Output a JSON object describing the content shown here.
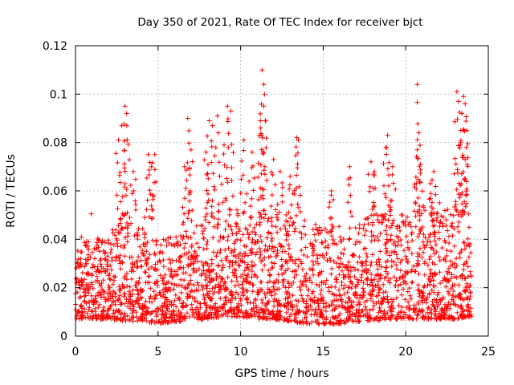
{
  "chart_data": {
    "type": "scatter",
    "title": "Day 350 of 2021, Rate Of TEC Index for receiver bjct",
    "xlabel": "GPS time / hours",
    "ylabel": "ROTI / TECUs",
    "xlim": [
      0,
      25
    ],
    "ylim": [
      0,
      0.12
    ],
    "xticks": [
      "0",
      "5",
      "10",
      "15",
      "20",
      "25"
    ],
    "yticks": [
      "0",
      "0.02",
      "0.04",
      "0.06",
      "0.08",
      "0.1",
      "0.12"
    ],
    "grid": true,
    "marker": "+",
    "color": "#ff0000",
    "x_range_of_data": [
      0,
      24
    ],
    "series": [
      {
        "dense_band": {
          "hours": [
            0,
            1,
            2,
            3,
            4,
            5,
            6,
            7,
            8,
            9,
            10,
            11,
            12,
            13,
            14,
            15,
            16,
            17,
            18,
            19,
            20,
            21,
            22,
            23,
            24
          ],
          "low": [
            0.007,
            0.007,
            0.007,
            0.006,
            0.006,
            0.005,
            0.006,
            0.006,
            0.007,
            0.008,
            0.008,
            0.007,
            0.007,
            0.006,
            0.005,
            0.005,
            0.005,
            0.006,
            0.006,
            0.007,
            0.007,
            0.007,
            0.007,
            0.007,
            0.008
          ],
          "typical_high": [
            0.035,
            0.035,
            0.038,
            0.045,
            0.04,
            0.035,
            0.037,
            0.04,
            0.045,
            0.048,
            0.046,
            0.045,
            0.045,
            0.045,
            0.04,
            0.042,
            0.04,
            0.04,
            0.045,
            0.045,
            0.045,
            0.048,
            0.045,
            0.05,
            0.035
          ]
        },
        "peaks": [
          {
            "x": 2.6,
            "y": 0.081
          },
          {
            "x": 2.8,
            "y": 0.087
          },
          {
            "x": 3.0,
            "y": 0.095
          },
          {
            "x": 3.1,
            "y": 0.092
          },
          {
            "x": 4.4,
            "y": 0.075
          },
          {
            "x": 4.6,
            "y": 0.07
          },
          {
            "x": 4.8,
            "y": 0.075
          },
          {
            "x": 3.5,
            "y": 0.068
          },
          {
            "x": 6.8,
            "y": 0.09
          },
          {
            "x": 7.0,
            "y": 0.077
          },
          {
            "x": 6.6,
            "y": 0.07
          },
          {
            "x": 8.1,
            "y": 0.089
          },
          {
            "x": 8.3,
            "y": 0.087
          },
          {
            "x": 8.6,
            "y": 0.091
          },
          {
            "x": 7.9,
            "y": 0.076
          },
          {
            "x": 9.2,
            "y": 0.095
          },
          {
            "x": 9.4,
            "y": 0.093
          },
          {
            "x": 9.0,
            "y": 0.079
          },
          {
            "x": 10.2,
            "y": 0.081
          },
          {
            "x": 10.7,
            "y": 0.076
          },
          {
            "x": 11.3,
            "y": 0.11
          },
          {
            "x": 11.4,
            "y": 0.104
          },
          {
            "x": 11.4,
            "y": 0.095
          },
          {
            "x": 11.2,
            "y": 0.089
          },
          {
            "x": 11.2,
            "y": 0.086
          },
          {
            "x": 12.0,
            "y": 0.073
          },
          {
            "x": 12.4,
            "y": 0.068
          },
          {
            "x": 13.4,
            "y": 0.082
          },
          {
            "x": 13.5,
            "y": 0.081
          },
          {
            "x": 13.0,
            "y": 0.066
          },
          {
            "x": 16.6,
            "y": 0.07
          },
          {
            "x": 15.5,
            "y": 0.06
          },
          {
            "x": 17.9,
            "y": 0.072
          },
          {
            "x": 18.1,
            "y": 0.068
          },
          {
            "x": 18.9,
            "y": 0.083
          },
          {
            "x": 18.8,
            "y": 0.078
          },
          {
            "x": 19.2,
            "y": 0.07
          },
          {
            "x": 20.7,
            "y": 0.104
          },
          {
            "x": 20.8,
            "y": 0.084
          },
          {
            "x": 20.7,
            "y": 0.077
          },
          {
            "x": 20.9,
            "y": 0.071
          },
          {
            "x": 21.7,
            "y": 0.068
          },
          {
            "x": 21.5,
            "y": 0.063
          },
          {
            "x": 23.1,
            "y": 0.101
          },
          {
            "x": 23.2,
            "y": 0.097
          },
          {
            "x": 23.5,
            "y": 0.099
          },
          {
            "x": 23.6,
            "y": 0.096
          },
          {
            "x": 23.4,
            "y": 0.092
          },
          {
            "x": 23.7,
            "y": 0.085
          },
          {
            "x": 23.3,
            "y": 0.079
          },
          {
            "x": 23.6,
            "y": 0.073
          }
        ]
      }
    ]
  }
}
